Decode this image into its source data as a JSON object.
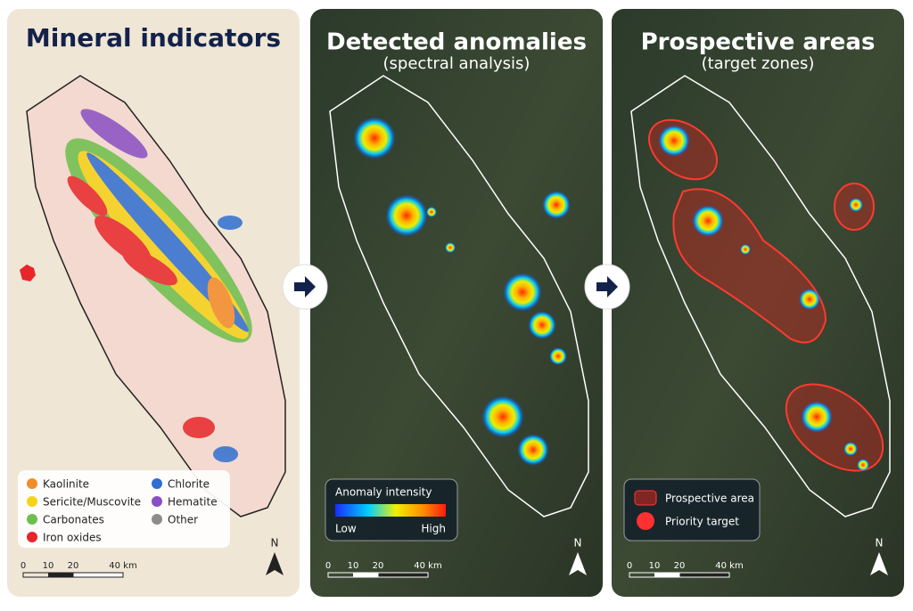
{
  "panels": [
    {
      "title": "Mineral indicators",
      "legend": [
        {
          "label": "Kaolinite",
          "color": "#f28c28"
        },
        {
          "label": "Sericite/Muscovite",
          "color": "#f5d316"
        },
        {
          "label": "Carbonates",
          "color": "#6cbf4a"
        },
        {
          "label": "Iron oxides",
          "color": "#e8262a"
        },
        {
          "label": "Chlorite",
          "color": "#2f6fd1"
        },
        {
          "label": "Hematite",
          "color": "#8a4fc4"
        },
        {
          "label": "Other",
          "color": "#8c8c8c"
        }
      ],
      "scale": [
        "0",
        "10",
        "20",
        "40 km"
      ],
      "north": "N"
    },
    {
      "title": "Detected anomalies",
      "subtitle": "(spectral analysis)",
      "legend": {
        "title": "Anomaly intensity",
        "low": "Low",
        "high": "High"
      },
      "scale": [
        "0",
        "10",
        "20",
        "40 km"
      ],
      "north": "N"
    },
    {
      "title": "Prospective areas",
      "subtitle": "(target zones)",
      "legend": [
        {
          "label": "Prospective area"
        },
        {
          "label": "Priority target"
        }
      ],
      "scale": [
        "0",
        "10",
        "20",
        "40 km"
      ],
      "north": "N"
    }
  ]
}
